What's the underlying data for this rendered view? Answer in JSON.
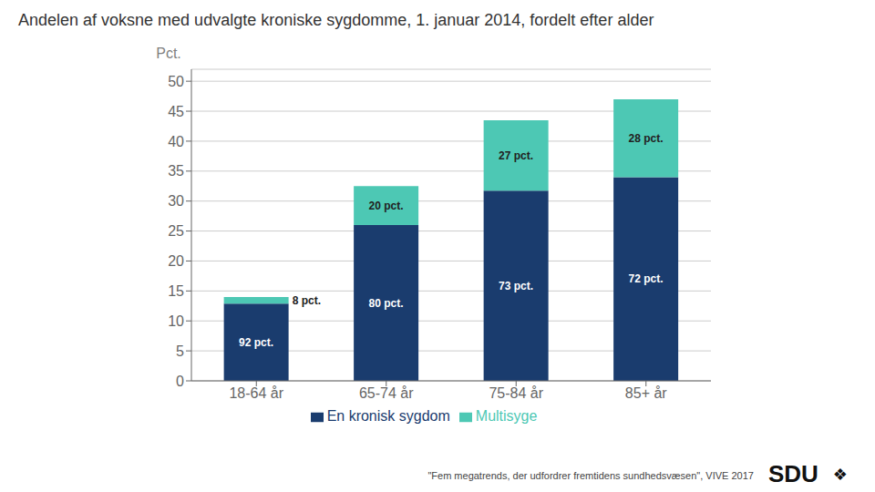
{
  "chart_data": {
    "type": "bar",
    "title": "Andelen af voksne med udvalgte kroniske sygdomme, 1. januar 2014, fordelt efter alder",
    "ylabel": "Pct.",
    "categories": [
      "18-64 år",
      "65-74 år",
      "75-84 år",
      "85+ år"
    ],
    "series": [
      {
        "name": "En kronisk sygdom",
        "color": "#1a3c6e",
        "values": [
          12.88,
          26.0,
          31.755,
          34.0
        ],
        "value_labels": [
          "92 pct.",
          "80 pct.",
          "73 pct.",
          "72 pct."
        ]
      },
      {
        "name": "Multisyge",
        "color": "#4dc8b4",
        "values": [
          1.12,
          6.5,
          11.745,
          13.0
        ],
        "value_labels": [
          "8 pct.",
          "20 pct.",
          "27 pct.",
          "28 pct."
        ]
      }
    ],
    "ylim": [
      0,
      52
    ],
    "yticks": [
      0,
      5,
      10,
      15,
      20,
      25,
      30,
      35,
      40,
      45,
      50
    ],
    "stacked": true,
    "grid": true,
    "legend": "bottom",
    "data_labels": true,
    "annotations": [
      "\"Fem megatrends, der udfordrer fremtidens sundhedsvæsen\", VIVE 2017",
      "SDU",
      "❖"
    ]
  }
}
